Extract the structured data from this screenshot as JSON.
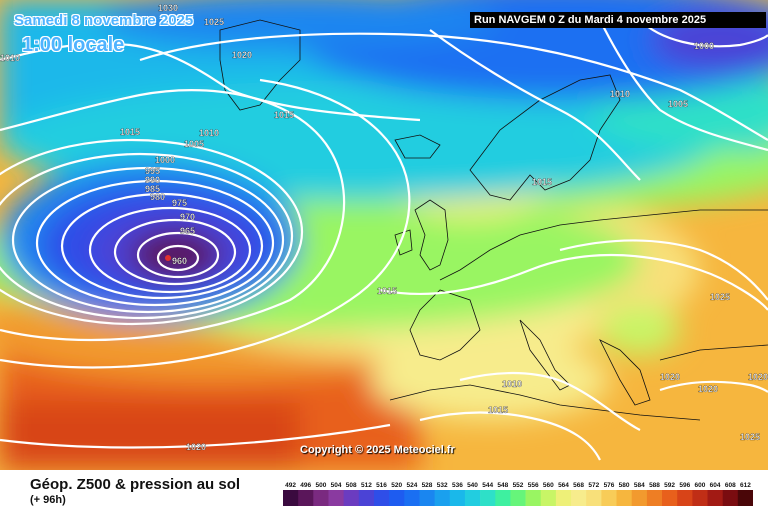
{
  "header": {
    "date": "Samedi 8 novembre 2025",
    "time": "1:00 locale",
    "run": "Run NAVGEM 0 Z du Mardi 4 novembre 2025"
  },
  "copyright": "Copyright © 2025 Meteociel.fr",
  "footer": {
    "title": "Géop. Z500 & pression au sol",
    "subtitle": "(+ 96h)"
  },
  "legend": {
    "values": [
      "492",
      "496",
      "500",
      "504",
      "508",
      "512",
      "516",
      "520",
      "524",
      "528",
      "532",
      "536",
      "540",
      "544",
      "548",
      "552",
      "556",
      "560",
      "564",
      "568",
      "572",
      "576",
      "580",
      "584",
      "588",
      "592",
      "596",
      "600",
      "604",
      "608",
      "612"
    ],
    "colors": [
      "#3a0a3f",
      "#5a165a",
      "#7a2a80",
      "#8a3aa0",
      "#6b3cc0",
      "#4b43d6",
      "#2f4ee8",
      "#1e5cf0",
      "#1a6ff2",
      "#1a86f0",
      "#1aa0ee",
      "#1ab8ea",
      "#22cde0",
      "#2ee0c8",
      "#3ef0a0",
      "#66f57a",
      "#99f562",
      "#c8f566",
      "#eef078",
      "#f7ec8c",
      "#f8e07a",
      "#f8cc58",
      "#f6b63e",
      "#f29a2e",
      "#ee7e24",
      "#e8601c",
      "#d84418",
      "#c02e16",
      "#a21a14",
      "#7a0c10",
      "#4a0608"
    ]
  },
  "isobars": [
    {
      "value": "1030"
    },
    {
      "value": "1025"
    },
    {
      "value": "1020"
    },
    {
      "value": "1010"
    },
    {
      "value": "1015"
    },
    {
      "value": "1010"
    },
    {
      "value": "1005"
    },
    {
      "value": "1000"
    },
    {
      "value": "995"
    },
    {
      "value": "990"
    },
    {
      "value": "985"
    },
    {
      "value": "980"
    },
    {
      "value": "975"
    },
    {
      "value": "970"
    },
    {
      "value": "965"
    },
    {
      "value": "960"
    },
    {
      "value": "1015"
    },
    {
      "value": "1020"
    },
    {
      "value": "1000"
    },
    {
      "value": "1010"
    },
    {
      "value": "1005"
    },
    {
      "value": "1015"
    },
    {
      "value": "1015"
    },
    {
      "value": "1025"
    },
    {
      "value": "1020"
    },
    {
      "value": "1020"
    },
    {
      "value": "1010"
    },
    {
      "value": "1015"
    },
    {
      "value": "1020"
    },
    {
      "value": "1025"
    }
  ]
}
